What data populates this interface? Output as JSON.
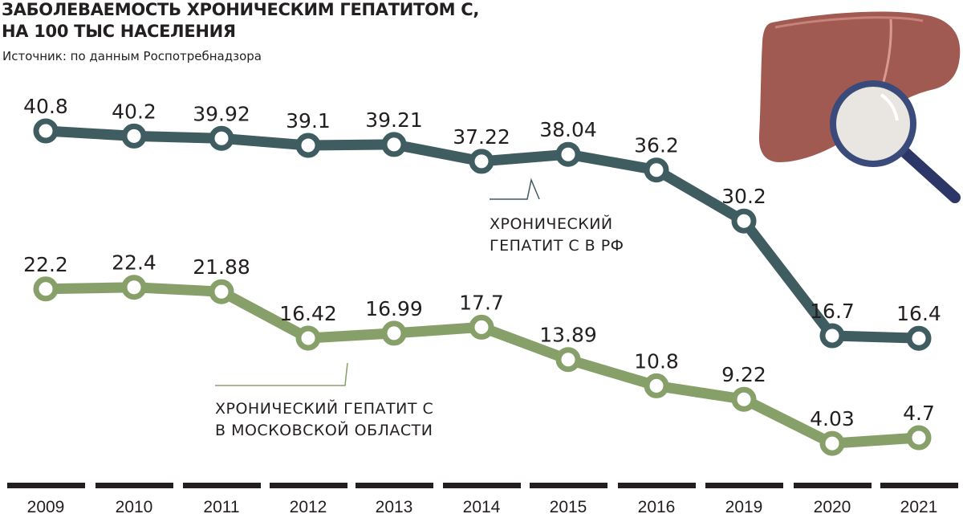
{
  "chart_data": {
    "type": "line",
    "title": "ЗАБОЛЕВАЕМОСТЬ ХРОНИЧЕСКИМ ГЕПАТИТОМ С,",
    "title_line2": "НА 100 ТЫС НАСЕЛЕНИЯ",
    "source": "Источник: по данным Роспотребнадзора",
    "categories": [
      "2009",
      "2010",
      "2011",
      "2012",
      "2013",
      "2014",
      "2015",
      "2016",
      "2019",
      "2020",
      "2021"
    ],
    "series": [
      {
        "name": "ХРОНИЧЕСКИЙ ГЕПАТИТ С В РФ",
        "name_lines": [
          "ХРОНИЧЕСКИЙ",
          "ГЕПАТИТ С В РФ"
        ],
        "color": "#3f5c61",
        "labels": [
          "40.8",
          "40.2",
          "39.92",
          "39.1",
          "39.21",
          "37.22",
          "38.04",
          "36.2",
          "30.2",
          "16.7",
          "16.4"
        ],
        "values": [
          40.8,
          40.2,
          39.92,
          39.1,
          39.21,
          37.22,
          38.04,
          36.2,
          30.2,
          16.7,
          16.4
        ]
      },
      {
        "name": "ХРОНИЧЕСКИЙ ГЕПАТИТ С В МОСКОВСКОЙ ОБЛАСТИ",
        "name_lines": [
          "ХРОНИЧЕСКИЙ ГЕПАТИТ С",
          "В МОСКОВСКОЙ ОБЛАСТИ"
        ],
        "color": "#87a06a",
        "labels": [
          "22.2",
          "22.4",
          "21.88",
          "16.42",
          "16.99",
          "17.7",
          "13.89",
          "10.8",
          "9.22",
          "4.03",
          "4.7"
        ],
        "values": [
          22.2,
          22.4,
          21.88,
          16.42,
          16.99,
          17.7,
          13.89,
          10.8,
          9.22,
          4.03,
          4.7
        ]
      }
    ],
    "grid": false,
    "legend": "callout labels next to lines",
    "liver_color": "#a05a52",
    "axis_color": "#231f20"
  }
}
